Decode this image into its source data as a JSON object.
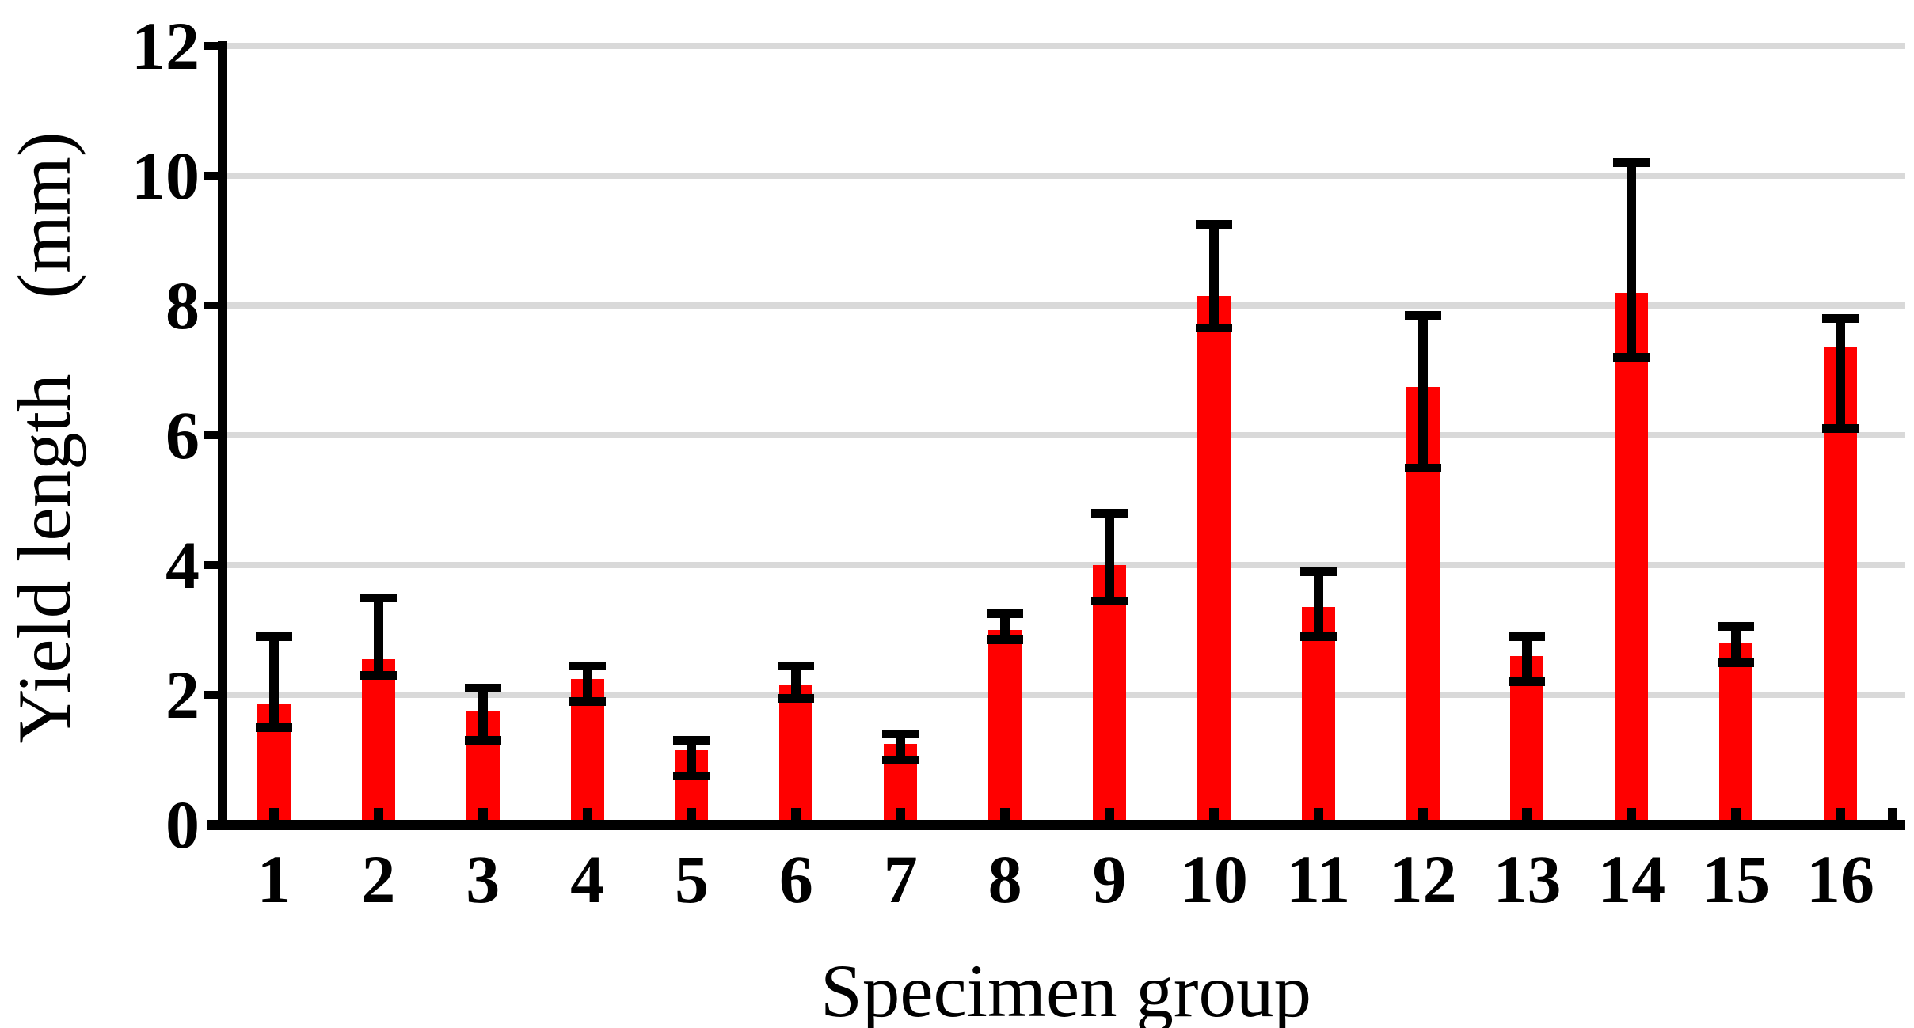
{
  "figure": {
    "background_color": "#ffffff"
  },
  "chart_data": {
    "type": "bar",
    "title": "",
    "xlabel": "Specimen group",
    "ylabel": "Yield length　(mm)",
    "categories": [
      "1",
      "2",
      "3",
      "4",
      "5",
      "6",
      "7",
      "8",
      "9",
      "10",
      "11",
      "12",
      "13",
      "14",
      "15",
      "16"
    ],
    "values": [
      1.85,
      2.55,
      1.75,
      2.25,
      1.15,
      2.15,
      1.25,
      3.0,
      4.0,
      8.15,
      3.35,
      6.75,
      2.6,
      8.2,
      2.8,
      7.35
    ],
    "error_bar_top": [
      2.9,
      3.5,
      2.1,
      2.45,
      1.3,
      2.45,
      1.4,
      3.25,
      4.8,
      9.25,
      3.9,
      7.85,
      2.9,
      10.2,
      3.05,
      7.8
    ],
    "error_bar_bottom": [
      1.5,
      2.3,
      1.3,
      1.9,
      0.75,
      1.95,
      1.0,
      2.85,
      3.45,
      7.65,
      2.9,
      5.5,
      2.2,
      7.2,
      2.5,
      6.1
    ],
    "ylim": [
      0,
      12
    ],
    "yticks": [
      0,
      2,
      4,
      6,
      8,
      10,
      12
    ],
    "grid": "horizontal gridlines on",
    "legend": "none",
    "bar_color": "#ff0000",
    "error_bar_color": "#000000",
    "axis_color": "#000000",
    "gridline_color": "#d9d9d9"
  }
}
